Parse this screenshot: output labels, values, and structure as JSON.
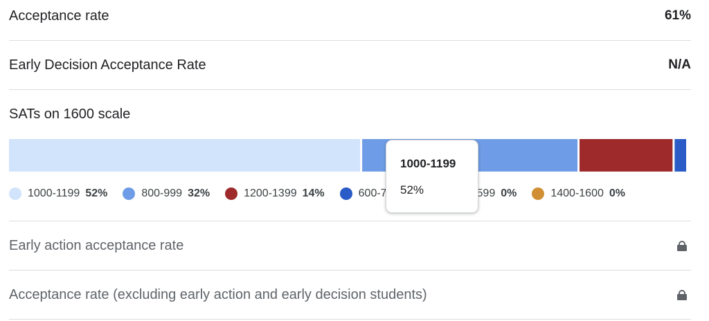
{
  "rows": {
    "acceptance_rate": {
      "label": "Acceptance rate",
      "value": "61%"
    },
    "early_decision": {
      "label": "Early Decision Acceptance Rate",
      "value": "N/A"
    },
    "sat_title": "SATs on 1600 scale",
    "early_action": {
      "label": "Early action acceptance rate",
      "icon": "lock-icon"
    },
    "excluding_early": {
      "label": "Acceptance rate (excluding early action and early decision students)",
      "icon": "lock-icon"
    }
  },
  "chart_data": {
    "type": "bar",
    "orientation": "horizontal-stacked",
    "categories": [
      "1000-1199",
      "800-999",
      "1200-1399",
      "600-799",
      "400-599",
      "1400-1600"
    ],
    "values": [
      52,
      32,
      14,
      2,
      0,
      0
    ],
    "labels": [
      "52%",
      "32%",
      "14%",
      "2%",
      "0%",
      "0%"
    ],
    "colors": [
      "#d2e3fc",
      "#6f9ce6",
      "#9e2a2b",
      "#2a5bc6",
      "#6d7fa8",
      "#d18f35"
    ],
    "legend": "bottom",
    "grid": false
  },
  "tooltip": {
    "title": "1000-1199",
    "value": "52%"
  }
}
